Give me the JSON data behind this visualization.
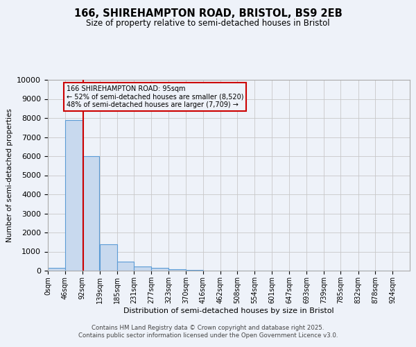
{
  "title": "166, SHIREHAMPTON ROAD, BRISTOL, BS9 2EB",
  "subtitle": "Size of property relative to semi-detached houses in Bristol",
  "xlabel": "Distribution of semi-detached houses by size in Bristol",
  "ylabel": "Number of semi-detached properties",
  "bar_values": [
    150,
    7900,
    6000,
    1400,
    480,
    230,
    130,
    80,
    50,
    10,
    5,
    2,
    1,
    1,
    0,
    0,
    0,
    0,
    0,
    0
  ],
  "bin_labels": [
    "0sqm",
    "46sqm",
    "92sqm",
    "139sqm",
    "185sqm",
    "231sqm",
    "277sqm",
    "323sqm",
    "370sqm",
    "416sqm",
    "462sqm",
    "508sqm",
    "554sqm",
    "601sqm",
    "647sqm",
    "693sqm",
    "739sqm",
    "785sqm",
    "832sqm",
    "878sqm",
    "924sqm"
  ],
  "bin_edges": [
    0,
    46,
    92,
    139,
    185,
    231,
    277,
    323,
    370,
    416,
    462,
    508,
    554,
    601,
    647,
    693,
    739,
    785,
    832,
    878,
    924
  ],
  "bar_color": "#c8d9ee",
  "bar_edge_color": "#5b9bd5",
  "grid_color": "#c8c8c8",
  "red_line_x": 95,
  "annotation_text": "166 SHIREHAMPTON ROAD: 95sqm\n← 52% of semi-detached houses are smaller (8,520)\n48% of semi-detached houses are larger (7,709) →",
  "annotation_box_color": "#cc0000",
  "ylim": [
    0,
    10000
  ],
  "yticks": [
    0,
    1000,
    2000,
    3000,
    4000,
    5000,
    6000,
    7000,
    8000,
    9000,
    10000
  ],
  "footer_line1": "Contains HM Land Registry data © Crown copyright and database right 2025.",
  "footer_line2": "Contains public sector information licensed under the Open Government Licence v3.0.",
  "background_color": "#eef2f9"
}
